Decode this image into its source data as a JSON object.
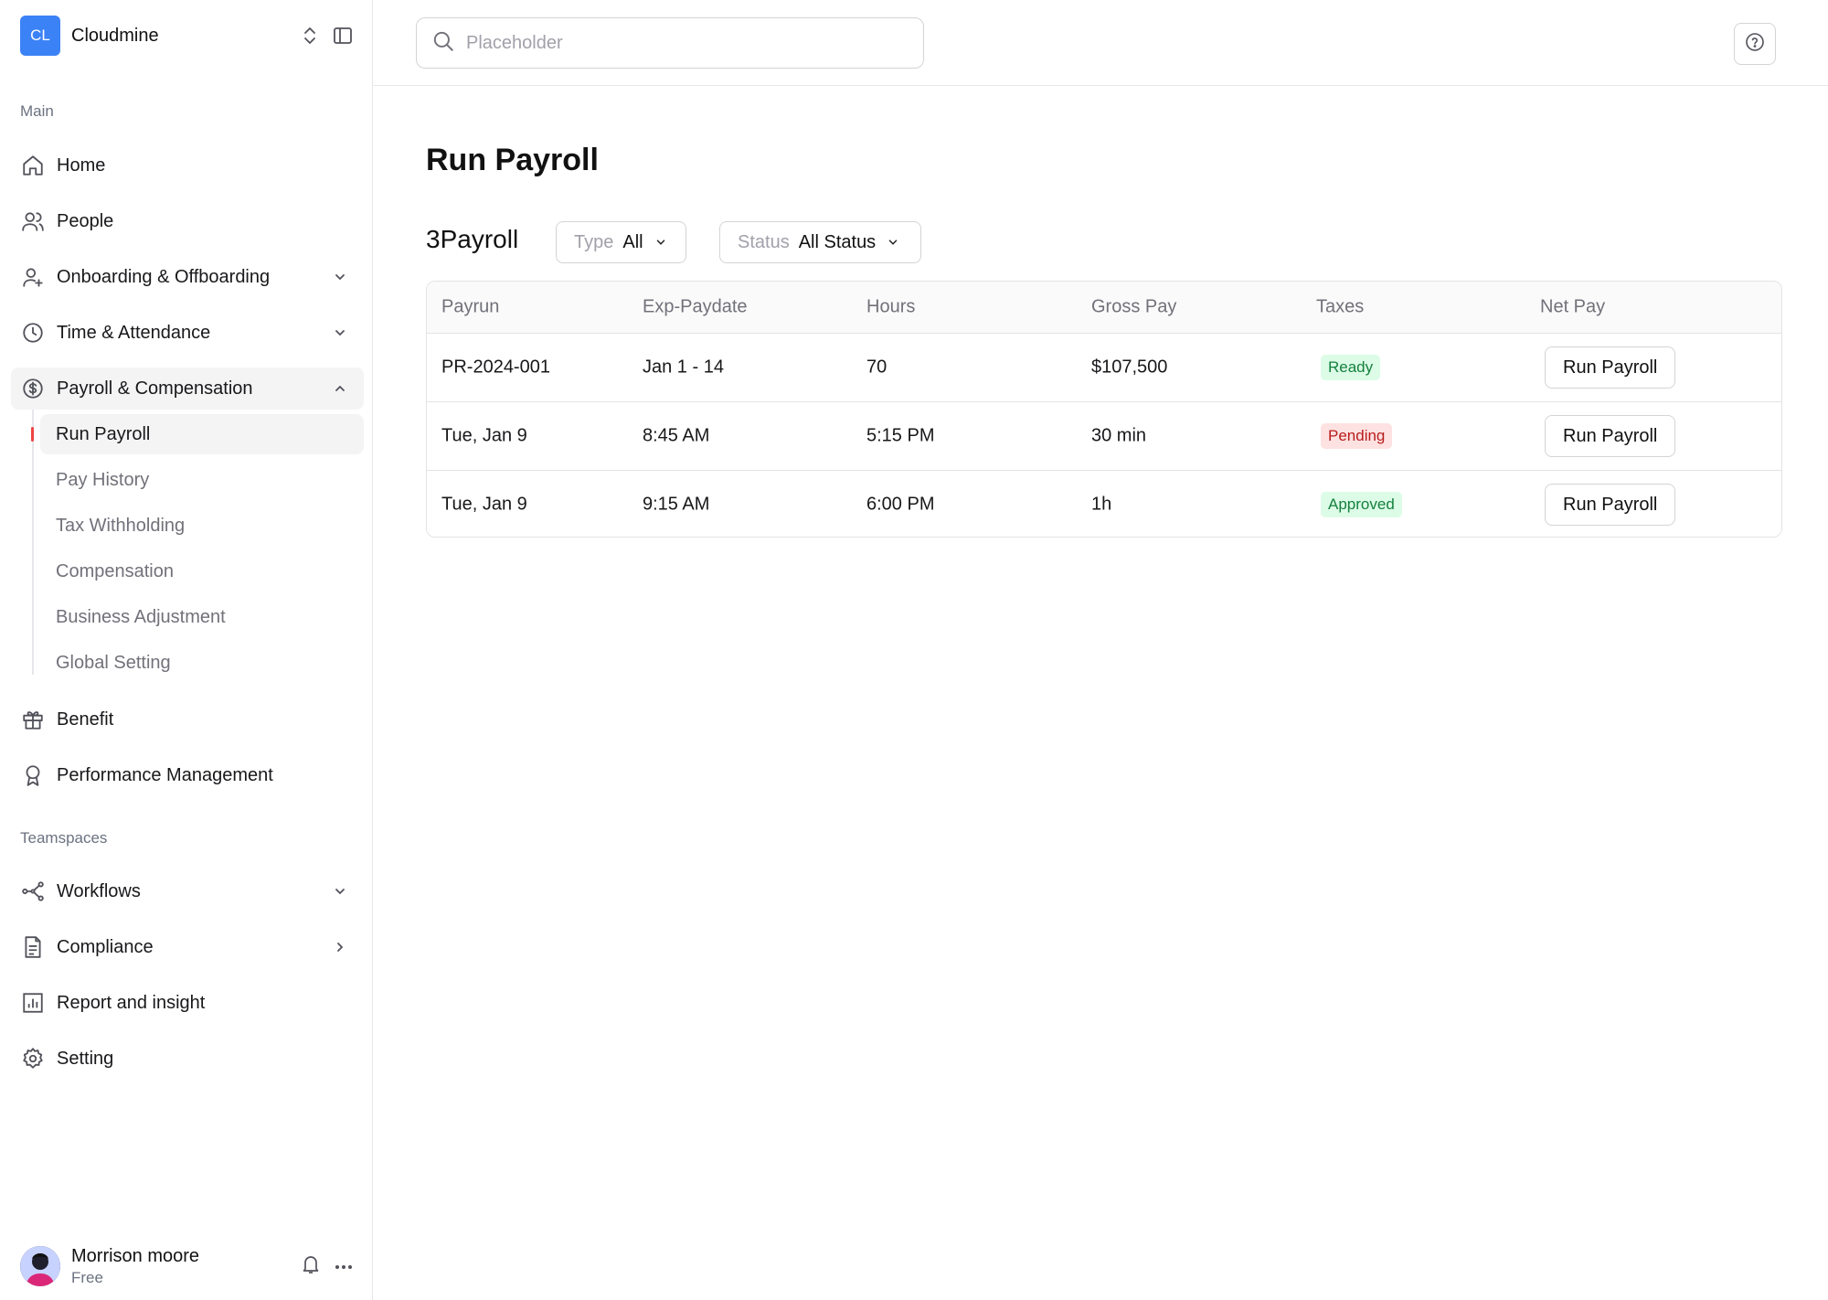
{
  "workspace": {
    "initials": "CL",
    "name": "Cloudmine"
  },
  "sidebar": {
    "main_label": "Main",
    "items": [
      {
        "label": "Home",
        "icon": "home-icon"
      },
      {
        "label": "People",
        "icon": "people-icon"
      },
      {
        "label": "Onboarding & Offboarding",
        "icon": "user-plus-icon",
        "chevron": "down"
      },
      {
        "label": "Time & Attendance",
        "icon": "clock-icon",
        "chevron": "down"
      },
      {
        "label": "Payroll & Compensation",
        "icon": "dollar-circle-icon",
        "chevron": "up",
        "expanded": true
      },
      {
        "label": "Benefit",
        "icon": "gift-icon"
      },
      {
        "label": "Performance Management",
        "icon": "award-icon"
      }
    ],
    "payroll_subitems": [
      {
        "label": "Run Payroll",
        "active": true
      },
      {
        "label": "Pay History"
      },
      {
        "label": "Tax Withholding"
      },
      {
        "label": "Compensation"
      },
      {
        "label": "Business Adjustment"
      },
      {
        "label": "Global Setting"
      }
    ],
    "teamspaces_label": "Teamspaces",
    "team_items": [
      {
        "label": "Workflows",
        "icon": "workflow-icon",
        "chevron": "down"
      },
      {
        "label": "Compliance",
        "icon": "document-icon",
        "chevron": "right"
      },
      {
        "label": "Report and insight",
        "icon": "chart-icon"
      },
      {
        "label": "Setting",
        "icon": "gear-icon"
      }
    ]
  },
  "user": {
    "name": "Morrison moore",
    "plan": "Free"
  },
  "search": {
    "placeholder": "Placeholder"
  },
  "page": {
    "title": "Run Payroll"
  },
  "toolbar": {
    "count_label": "3Payroll",
    "type_filter": {
      "key": "Type",
      "value": "All"
    },
    "status_filter": {
      "key": "Status",
      "value": "All Status"
    }
  },
  "table": {
    "headers": [
      "Payrun",
      "Exp-Paydate",
      "Hours",
      "Gross Pay",
      "Taxes",
      "Net Pay"
    ],
    "rows": [
      {
        "payrun": "PR-2024-001",
        "paydate": "Jan 1 - 14",
        "hours": "70",
        "gross": "$107,500",
        "status": "Ready",
        "action": "Run Payroll"
      },
      {
        "payrun": "Tue, Jan 9",
        "paydate": "8:45 AM",
        "hours": "5:15 PM",
        "gross": "30 min",
        "status": "Pending",
        "action": "Run Payroll"
      },
      {
        "payrun": "Tue, Jan 9",
        "paydate": "9:15 AM",
        "hours": "6:00 PM",
        "gross": "1h",
        "status": "Approved",
        "action": "Run Payroll"
      }
    ]
  },
  "colors": {
    "brand": "#3b82f6",
    "ready": "#15803d",
    "pending": "#b91c1c",
    "marker": "#ef4444"
  }
}
